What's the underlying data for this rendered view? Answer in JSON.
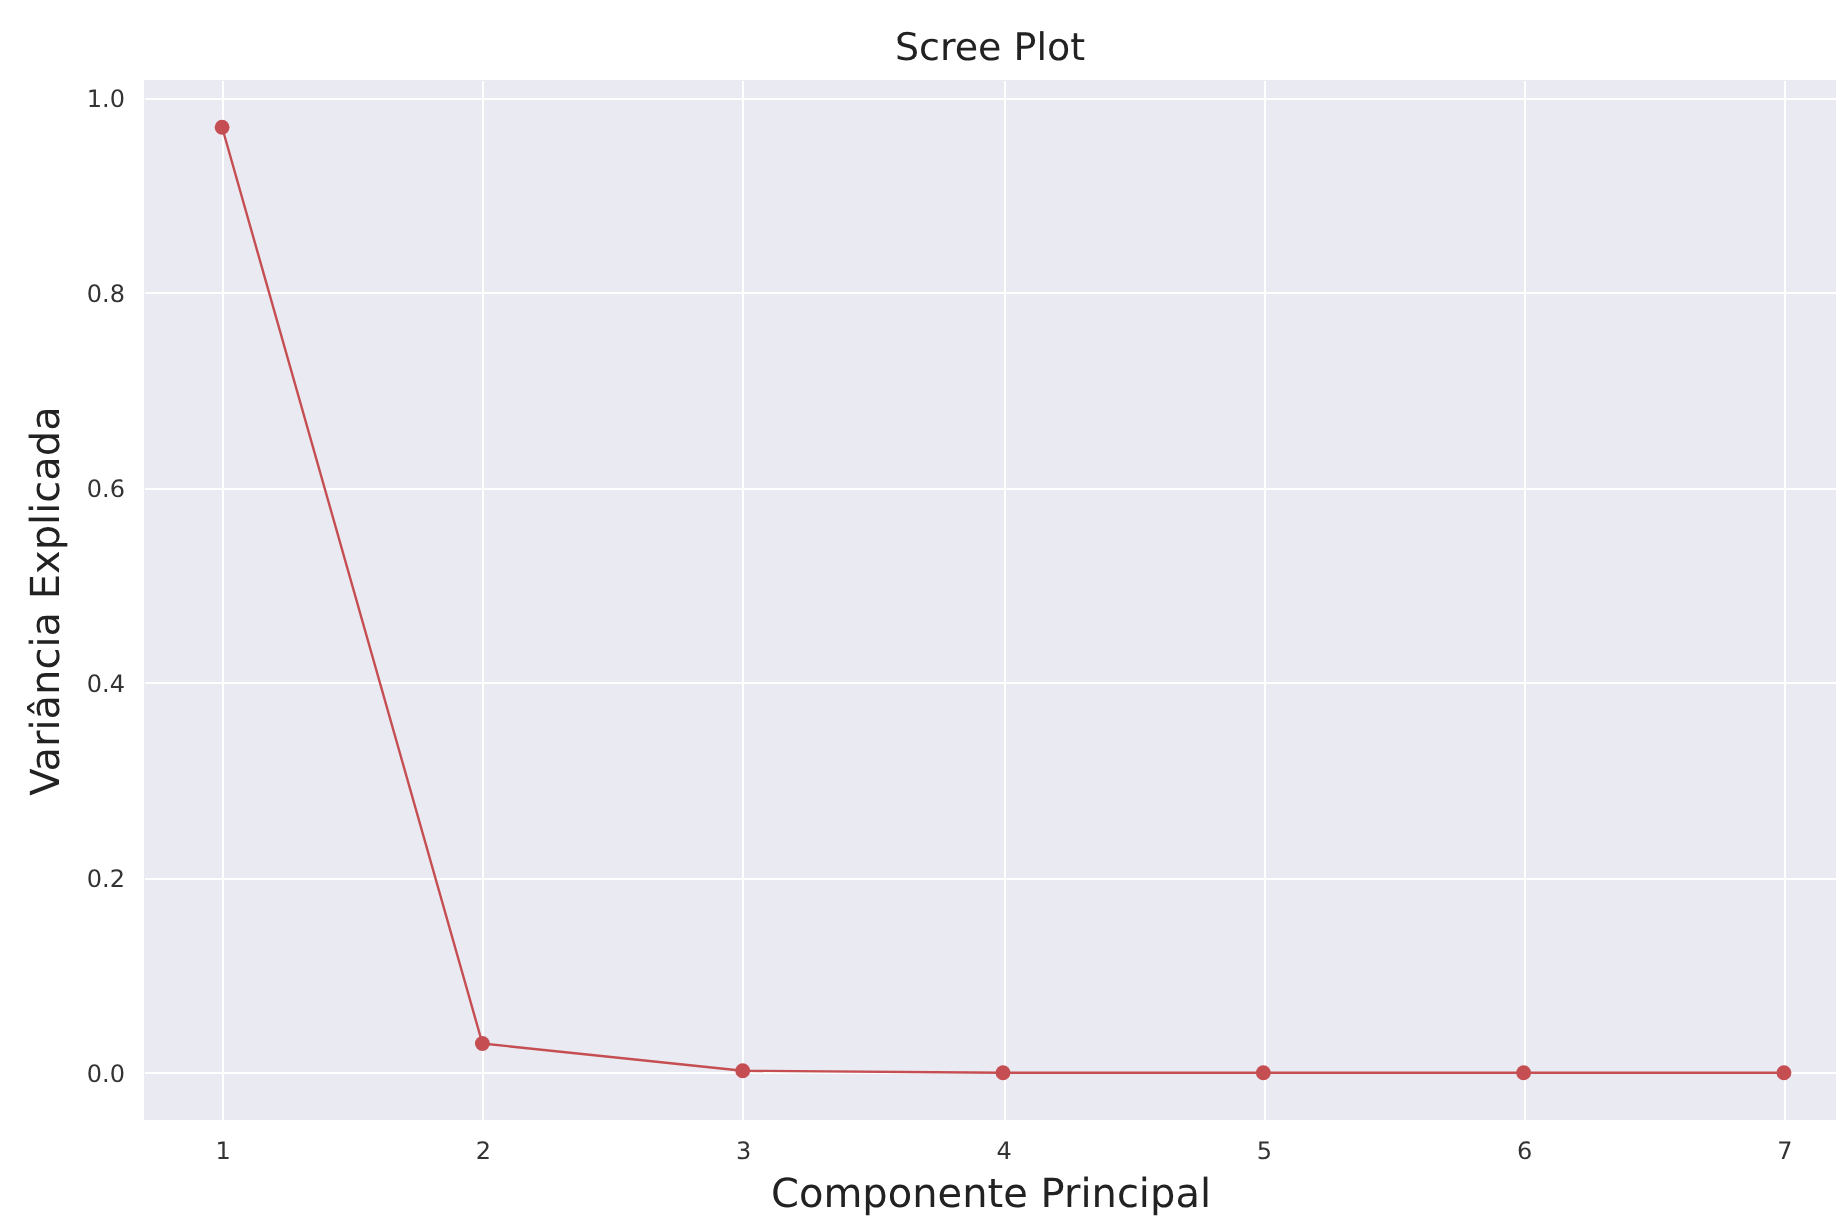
{
  "chart_data": {
    "type": "line",
    "title": "Scree Plot",
    "xlabel": "Componente Principal",
    "ylabel": "Variância Explicada",
    "x": [
      1,
      2,
      3,
      4,
      5,
      6,
      7
    ],
    "series": [
      {
        "color": "#c44e52",
        "values": [
          0.97,
          0.03,
          0.002,
          0.0,
          0.0,
          0.0,
          0.0
        ]
      }
    ],
    "xlim": [
      0.7,
      7.2
    ],
    "xticks": [
      1,
      2,
      3,
      4,
      5,
      6,
      7
    ],
    "ylim": [
      -0.0485,
      1.0185
    ],
    "yticks": [
      {
        "value": 0,
        "label": "0.0"
      },
      {
        "value": 0.2,
        "label": "0.2"
      },
      {
        "value": 0.4,
        "label": "0.4"
      },
      {
        "value": 0.6,
        "label": "0.6"
      },
      {
        "value": 0.8,
        "label": "0.8"
      },
      {
        "value": 1,
        "label": "1.0"
      }
    ],
    "grid": true,
    "marker": "circle",
    "line_style": "solid"
  }
}
